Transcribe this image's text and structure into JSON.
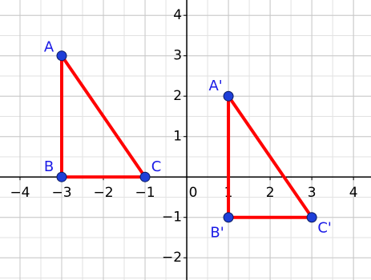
{
  "chart_data": {
    "type": "polygon",
    "xlim": [
      -4.48,
      4.42
    ],
    "ylim": [
      -2.55,
      4.38
    ],
    "xticks": [
      {
        "value": -4,
        "label": "−4"
      },
      {
        "value": -3,
        "label": "−3"
      },
      {
        "value": -2,
        "label": "−2"
      },
      {
        "value": -1,
        "label": "−1"
      },
      0,
      1,
      2,
      3,
      4
    ],
    "yticks": [
      {
        "value": -2,
        "label": "−2"
      },
      {
        "value": -1,
        "label": "−1"
      },
      1,
      2,
      3,
      4
    ],
    "grid": true,
    "series": [
      {
        "color": "#ff0000",
        "point_color": "#1f3fd8",
        "labels": [
          "A",
          "B",
          "C"
        ],
        "x": [
          -3,
          -3,
          -1
        ],
        "y": [
          3,
          0,
          0
        ]
      },
      {
        "color": "#ff0000",
        "point_color": "#1f3fd8",
        "labels": [
          "A'",
          "B'",
          "C'"
        ],
        "x": [
          1,
          1,
          3
        ],
        "y": [
          2,
          -1,
          -1
        ]
      }
    ]
  }
}
